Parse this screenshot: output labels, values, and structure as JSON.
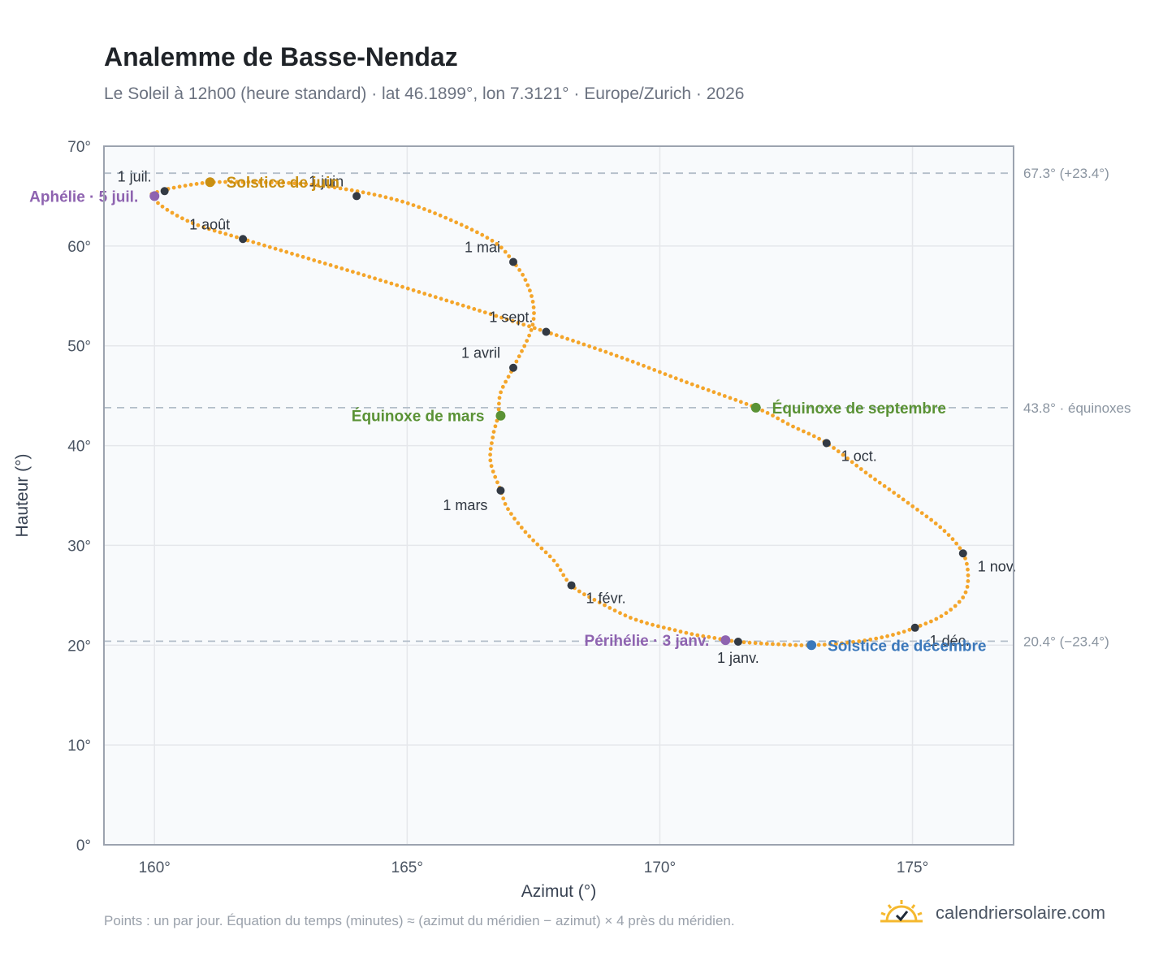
{
  "title": "Analemme de Basse-Nendaz",
  "subtitle": "Le Soleil à 12h00 (heure standard) · lat 46.1899°, lon 7.3121° · Europe/Zurich · 2026",
  "footnote": "Points : un par jour. Équation du temps (minutes) ≈ (azimut du méridien − azimut) × 4 près du méridien.",
  "brand": {
    "text": "calendriersolaire.com",
    "icon": "sun-logo-icon"
  },
  "colors": {
    "curve": "#f4a52a",
    "month_dot": "#333a44",
    "solstice_june": "#c98f12",
    "solstice_december": "#3b78bb",
    "equinox": "#5a9235",
    "apsis": "#8e63b0",
    "reference_line": "#b3bec9",
    "plot_background": "#f8fafc",
    "grid": "#e5e7eb",
    "frame": "#9ca3af"
  },
  "chart_data": {
    "type": "scatter",
    "xlabel": "Azimut (°)",
    "ylabel": "Hauteur (°)",
    "xlim": [
      159,
      177
    ],
    "ylim": [
      0,
      70
    ],
    "grid": true,
    "x_ticks": [
      {
        "value": 160,
        "label": "160°"
      },
      {
        "value": 165,
        "label": "165°"
      },
      {
        "value": 170,
        "label": "170°"
      },
      {
        "value": 175,
        "label": "175°"
      }
    ],
    "y_ticks": [
      {
        "value": 0,
        "label": "0°"
      },
      {
        "value": 10,
        "label": "10°"
      },
      {
        "value": 20,
        "label": "20°"
      },
      {
        "value": 30,
        "label": "30°"
      },
      {
        "value": 40,
        "label": "40°"
      },
      {
        "value": 50,
        "label": "50°"
      },
      {
        "value": 60,
        "label": "60°"
      },
      {
        "value": 70,
        "label": "70°"
      }
    ],
    "reference_lines": [
      {
        "y": 67.3,
        "label": "67.3° (+23.4°)"
      },
      {
        "y": 43.8,
        "label": "43.8° · équinoxes"
      },
      {
        "y": 20.4,
        "label": "20.4° (−23.4°)"
      }
    ],
    "analemma_path": [
      [
        171.55,
        20.35
      ],
      [
        172.3,
        20.1
      ],
      [
        173.0,
        20.0
      ],
      [
        173.8,
        20.3
      ],
      [
        174.5,
        20.9
      ],
      [
        175.05,
        21.75
      ],
      [
        175.6,
        23.0
      ],
      [
        176.0,
        24.8
      ],
      [
        176.1,
        26.8
      ],
      [
        176.0,
        29.2
      ],
      [
        175.6,
        31.6
      ],
      [
        174.9,
        34.3
      ],
      [
        174.1,
        37.2
      ],
      [
        173.3,
        40.25
      ],
      [
        172.6,
        42.0
      ],
      [
        171.9,
        43.8
      ],
      [
        170.5,
        46.4
      ],
      [
        169.2,
        48.9
      ],
      [
        167.75,
        51.4
      ],
      [
        166.0,
        54.2
      ],
      [
        164.0,
        57.3
      ],
      [
        161.75,
        60.7
      ],
      [
        160.8,
        62.2
      ],
      [
        160.2,
        63.8
      ],
      [
        159.95,
        65.0
      ],
      [
        160.0,
        65.3
      ],
      [
        160.25,
        65.7
      ],
      [
        160.8,
        66.2
      ],
      [
        161.2,
        66.4
      ],
      [
        162.0,
        66.4
      ],
      [
        163.0,
        66.2
      ],
      [
        164.0,
        65.5
      ],
      [
        165.0,
        64.3
      ],
      [
        166.0,
        62.3
      ],
      [
        166.75,
        60.3
      ],
      [
        167.1,
        58.4
      ],
      [
        167.35,
        56.5
      ],
      [
        167.5,
        54.0
      ],
      [
        167.45,
        51.5
      ],
      [
        167.1,
        47.8
      ],
      [
        166.85,
        45.3
      ],
      [
        166.8,
        43.0
      ],
      [
        166.7,
        41.0
      ],
      [
        166.65,
        38.4
      ],
      [
        166.85,
        35.5
      ],
      [
        167.0,
        33.6
      ],
      [
        167.4,
        31.0
      ],
      [
        167.9,
        28.5
      ],
      [
        168.25,
        26.0
      ],
      [
        168.8,
        24.3
      ],
      [
        169.5,
        22.6
      ],
      [
        170.3,
        21.5
      ],
      [
        171.0,
        20.8
      ],
      [
        171.55,
        20.35
      ]
    ],
    "month_markers": [
      {
        "label": "1 janv.",
        "x": 171.55,
        "y": 20.35,
        "anchor": "below"
      },
      {
        "label": "1 févr.",
        "x": 168.25,
        "y": 26.0,
        "anchor": "below-right"
      },
      {
        "label": "1 mars",
        "x": 166.85,
        "y": 35.5,
        "anchor": "below-left"
      },
      {
        "label": "1 avril",
        "x": 167.1,
        "y": 47.8,
        "anchor": "above-left"
      },
      {
        "label": "1 mai",
        "x": 167.1,
        "y": 58.4,
        "anchor": "above-left"
      },
      {
        "label": "1 juin",
        "x": 164.0,
        "y": 65.0,
        "anchor": "above-left"
      },
      {
        "label": "1 juil.",
        "x": 160.2,
        "y": 65.5,
        "anchor": "above-left"
      },
      {
        "label": "1 août",
        "x": 161.75,
        "y": 60.7,
        "anchor": "above-left"
      },
      {
        "label": "1 sept.",
        "x": 167.75,
        "y": 51.4,
        "anchor": "above-left"
      },
      {
        "label": "1 oct.",
        "x": 173.3,
        "y": 40.25,
        "anchor": "below-right"
      },
      {
        "label": "1 nov.",
        "x": 176.0,
        "y": 29.2,
        "anchor": "below-right"
      },
      {
        "label": "1 déc.",
        "x": 175.05,
        "y": 21.75,
        "anchor": "below-right"
      }
    ],
    "events": [
      {
        "label": "Solstice de juin",
        "x": 161.1,
        "y": 66.4,
        "kind": "solstice_june",
        "side": "right"
      },
      {
        "label": "Solstice de décembre",
        "x": 173.0,
        "y": 20.0,
        "kind": "solstice_december",
        "side": "right"
      },
      {
        "label": "Équinoxe de mars",
        "x": 166.85,
        "y": 43.0,
        "kind": "equinox",
        "side": "left"
      },
      {
        "label": "Équinoxe de septembre",
        "x": 171.9,
        "y": 43.8,
        "kind": "equinox",
        "side": "right"
      },
      {
        "label": "Aphélie · 5 juil.",
        "x": 160.0,
        "y": 65.0,
        "kind": "apsis",
        "side": "left"
      },
      {
        "label": "Périhélie · 3 janv.",
        "x": 171.3,
        "y": 20.5,
        "kind": "apsis",
        "side": "left"
      }
    ]
  }
}
